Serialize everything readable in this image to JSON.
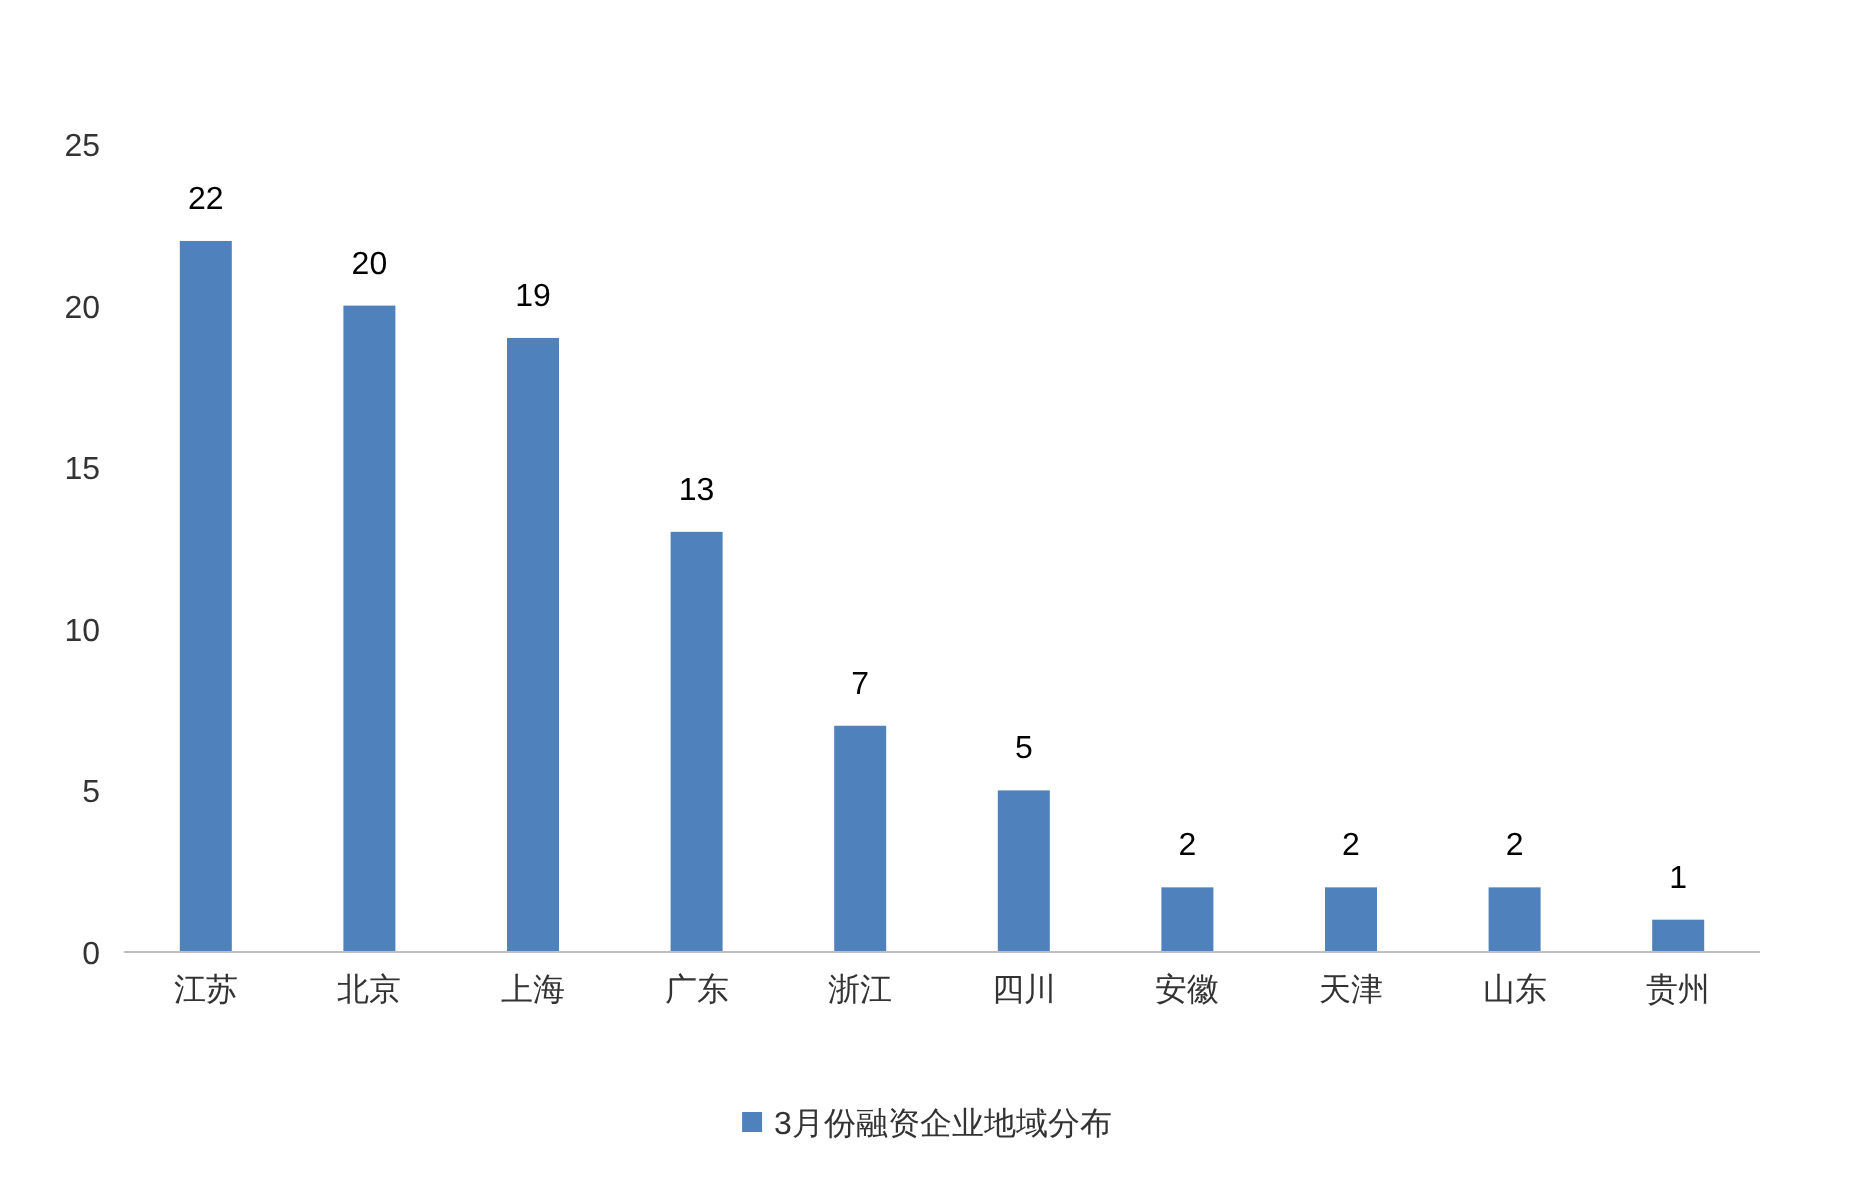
{
  "chart_data": {
    "type": "bar",
    "categories": [
      "江苏",
      "北京",
      "上海",
      "广东",
      "浙江",
      "四川",
      "安徽",
      "天津",
      "山东",
      "贵州"
    ],
    "series": [
      {
        "name": "3月份融资企业地域分布",
        "color": "#4f81bd",
        "values": [
          22,
          20,
          19,
          13,
          7,
          5,
          2,
          2,
          2,
          1
        ]
      }
    ],
    "ylim": [
      0,
      25
    ],
    "yticks": [
      0,
      5,
      10,
      15,
      20,
      25
    ],
    "data_labels": true,
    "legend": "bottom"
  }
}
